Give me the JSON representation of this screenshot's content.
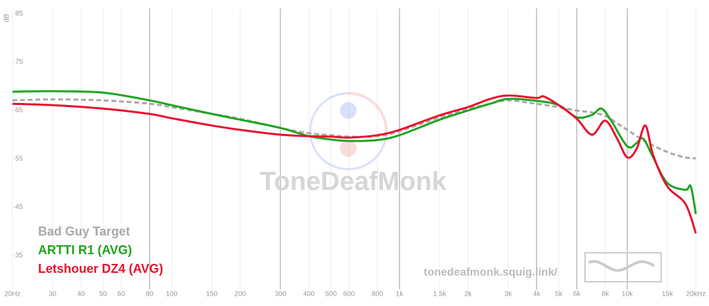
{
  "chart_data": {
    "type": "line",
    "y_label": "dB",
    "watermark": "ToneDeafMonk",
    "site": "tonedeafmonk.squig.link/",
    "log_x": true,
    "xlim": [
      20,
      20000
    ],
    "ylim": [
      28,
      85
    ],
    "yticks": [
      35,
      45,
      55,
      65,
      75,
      85
    ],
    "xticks": [
      {
        "value": 20,
        "label": "20Hz"
      },
      30,
      40,
      50,
      60,
      80,
      100,
      150,
      200,
      300,
      400,
      500,
      600,
      800,
      {
        "value": 1000,
        "label": "1k"
      },
      {
        "value": 1500,
        "label": "1.5k"
      },
      {
        "value": 2000,
        "label": "2k"
      },
      {
        "value": 3000,
        "label": "3k"
      },
      {
        "value": 4000,
        "label": "4k"
      },
      {
        "value": 5000,
        "label": "5k"
      },
      {
        "value": 6000,
        "label": "6k"
      },
      {
        "value": 8000,
        "label": "8k"
      },
      {
        "value": 10000,
        "label": "10k"
      },
      {
        "value": 15000,
        "label": "15k"
      },
      {
        "value": 20000,
        "label": "20kHz"
      }
    ],
    "emphasized_xticks": [
      80,
      300,
      1000,
      4000,
      6000,
      10000
    ],
    "series": [
      {
        "name": "Bad Guy Target",
        "color": "#a9a9a9",
        "dashed": true,
        "x": [
          20,
          30,
          50,
          80,
          100,
          150,
          200,
          300,
          400,
          500,
          600,
          800,
          1000,
          1500,
          2000,
          2500,
          3000,
          4000,
          5000,
          6000,
          7000,
          8000,
          9000,
          10000,
          12000,
          15000,
          18000,
          20000
        ],
        "values": [
          67.1,
          67.3,
          67.1,
          66.4,
          65.7,
          64.3,
          63.3,
          61.4,
          60.3,
          59.9,
          59.6,
          59.7,
          60.7,
          63.6,
          65.3,
          66.4,
          67.1,
          66.4,
          65.7,
          65.0,
          64.6,
          63.9,
          62.4,
          61.0,
          58.6,
          56.4,
          55.3,
          55.1
        ]
      },
      {
        "name": "ARTTI R1 (AVG)",
        "color": "#1fa51f",
        "dashed": false,
        "x": [
          20,
          30,
          50,
          80,
          100,
          150,
          200,
          300,
          400,
          500,
          600,
          800,
          1000,
          1500,
          2000,
          2500,
          3000,
          4000,
          5000,
          6000,
          7000,
          7700,
          8500,
          10000,
          11000,
          11500,
          12000,
          13000,
          15000,
          18000,
          19000,
          20000
        ],
        "values": [
          68.9,
          69.0,
          68.7,
          67.1,
          66.1,
          64.3,
          63.1,
          61.4,
          59.7,
          59.0,
          58.7,
          58.9,
          59.9,
          63.1,
          65.0,
          66.4,
          67.4,
          67.0,
          66.1,
          63.6,
          64.1,
          65.4,
          62.9,
          57.6,
          58.3,
          59.3,
          58.6,
          55.3,
          50.0,
          48.6,
          49.3,
          43.6
        ]
      },
      {
        "name": "Letshouer DZ4 (AVG)",
        "color": "#e8112d",
        "dashed": false,
        "x": [
          20,
          30,
          50,
          80,
          100,
          150,
          200,
          300,
          400,
          500,
          600,
          800,
          1000,
          1500,
          2000,
          2500,
          3000,
          4000,
          4300,
          5000,
          6000,
          7000,
          8000,
          9000,
          10000,
          11000,
          12000,
          13000,
          15000,
          18000,
          20000
        ],
        "values": [
          66.4,
          66.1,
          65.4,
          64.3,
          63.4,
          61.9,
          61.0,
          60.0,
          59.7,
          59.6,
          59.4,
          59.9,
          61.0,
          64.0,
          65.7,
          67.4,
          68.1,
          67.6,
          67.9,
          66.1,
          63.3,
          60.0,
          62.9,
          59.3,
          55.3,
          57.1,
          61.9,
          55.7,
          49.3,
          45.7,
          39.6
        ]
      }
    ]
  }
}
